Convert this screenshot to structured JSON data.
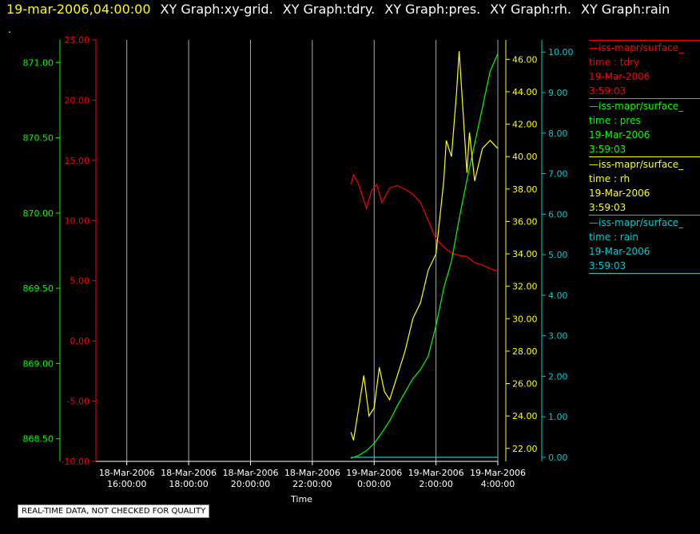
{
  "header": {
    "timestamp": "19-mar-2006,04:00:00",
    "titles": [
      "XY Graph:xy-grid.",
      "XY Graph:tdry.",
      "XY Graph:pres.",
      "XY Graph:rh.",
      "XY Graph:rain"
    ]
  },
  "header_mark": ".",
  "footer": "REAL-TIME DATA, NOT CHECKED FOR QUALITY",
  "colors": {
    "tdry": "#ff0000",
    "pres": "#00ff00",
    "rh": "#ffff00",
    "rain": "#00cccc",
    "grid": "#aaaaaa"
  },
  "legend": [
    {
      "name": "iss-mapr/surface_",
      "field": "time : tdry",
      "date": "19-Mar-2006",
      "time": "3:59:03",
      "color": "#ff0000"
    },
    {
      "name": "iss-mapr/surface_",
      "field": "time : pres",
      "date": "19-Mar-2006",
      "time": "3:59:03",
      "color": "#00ff00"
    },
    {
      "name": "iss-mapr/surface_",
      "field": "time : rh",
      "date": "19-Mar-2006",
      "time": "3:59:03",
      "color": "#ffff00"
    },
    {
      "name": "iss-mapr/surface_",
      "field": "time : rain",
      "date": "19-Mar-2006",
      "time": "3:59:03",
      "color": "#00cccc"
    }
  ],
  "chart_data": {
    "type": "line",
    "xlabel": "Time",
    "x_ticks": [
      [
        "18-Mar-2006",
        "16:00:00"
      ],
      [
        "18-Mar-2006",
        "18:00:00"
      ],
      [
        "18-Mar-2006",
        "20:00:00"
      ],
      [
        "18-Mar-2006",
        "22:00:00"
      ],
      [
        "19-Mar-2006",
        "0:00:00"
      ],
      [
        "19-Mar-2006",
        "2:00:00"
      ],
      [
        "19-Mar-2006",
        "4:00:00"
      ]
    ],
    "xlim": [
      "2006-03-18 15:00:00",
      "2006-03-19 04:00:00"
    ],
    "grid": true,
    "y_axes": {
      "pres": {
        "ylim": [
          868.35,
          871.15
        ],
        "ticks": [
          "868.50",
          "869.00",
          "869.50",
          "870.00",
          "870.50",
          "871.00"
        ]
      },
      "tdry": {
        "ylim": [
          -10,
          25
        ],
        "ticks": [
          "-10.00",
          "-5.00",
          "0.00",
          "5.00",
          "10.00",
          "15.00",
          "20.00",
          "25.00"
        ]
      },
      "rh": {
        "ylim": [
          21.2,
          47.2
        ],
        "ticks": [
          "22.00",
          "24.00",
          "26.00",
          "28.00",
          "30.00",
          "32.00",
          "34.00",
          "36.00",
          "38.00",
          "40.00",
          "42.00",
          "44.00",
          "46.00"
        ]
      },
      "rain": {
        "ylim": [
          -0.1,
          10.3
        ],
        "ticks": [
          "0.00",
          "1.00",
          "2.00",
          "3.00",
          "4.00",
          "5.00",
          "6.00",
          "7.00",
          "8.00",
          "9.00",
          "10.00"
        ]
      }
    },
    "series": [
      {
        "key": "tdry",
        "name": "time : tdry",
        "x": [
          "2006-03-18 23:15",
          "2006-03-18 23:20",
          "2006-03-18 23:30",
          "2006-03-18 23:45",
          "2006-03-18 23:55",
          "2006-03-19 00:05",
          "2006-03-19 00:15",
          "2006-03-19 00:30",
          "2006-03-19 00:45",
          "2006-03-19 01:00",
          "2006-03-19 01:15",
          "2006-03-19 01:30",
          "2006-03-19 01:45",
          "2006-03-19 02:00",
          "2006-03-19 02:15",
          "2006-03-19 02:30",
          "2006-03-19 02:45",
          "2006-03-19 03:00",
          "2006-03-19 03:15",
          "2006-03-19 03:30",
          "2006-03-19 03:45",
          "2006-03-19 04:00"
        ],
        "values": [
          13.0,
          13.8,
          13.0,
          11.0,
          12.5,
          13.0,
          11.5,
          12.7,
          12.9,
          12.6,
          12.2,
          11.5,
          10.0,
          8.5,
          7.8,
          7.3,
          7.1,
          7.0,
          6.5,
          6.3,
          6.0,
          5.8
        ]
      },
      {
        "key": "pres",
        "name": "time : pres",
        "x": [
          "2006-03-18 23:15",
          "2006-03-18 23:30",
          "2006-03-18 23:45",
          "2006-03-19 00:00",
          "2006-03-19 00:15",
          "2006-03-19 00:30",
          "2006-03-19 00:45",
          "2006-03-19 01:00",
          "2006-03-19 01:15",
          "2006-03-19 01:30",
          "2006-03-19 01:45",
          "2006-03-19 02:00",
          "2006-03-19 02:15",
          "2006-03-19 02:30",
          "2006-03-19 02:45",
          "2006-03-19 03:00",
          "2006-03-19 03:15",
          "2006-03-19 03:30",
          "2006-03-19 03:45",
          "2006-03-19 04:00"
        ],
        "values": [
          868.37,
          868.39,
          868.42,
          868.47,
          868.54,
          868.62,
          868.72,
          868.81,
          868.9,
          868.96,
          869.05,
          869.25,
          869.5,
          869.68,
          869.96,
          870.22,
          870.46,
          870.7,
          870.94,
          871.06
        ]
      },
      {
        "key": "rh",
        "name": "time : rh",
        "x": [
          "2006-03-18 23:15",
          "2006-03-18 23:20",
          "2006-03-18 23:30",
          "2006-03-18 23:40",
          "2006-03-18 23:50",
          "2006-03-19 00:00",
          "2006-03-19 00:10",
          "2006-03-19 00:20",
          "2006-03-19 00:30",
          "2006-03-19 00:45",
          "2006-03-19 01:00",
          "2006-03-19 01:15",
          "2006-03-19 01:30",
          "2006-03-19 01:45",
          "2006-03-19 02:00",
          "2006-03-19 02:10",
          "2006-03-19 02:15",
          "2006-03-19 02:20",
          "2006-03-19 02:30",
          "2006-03-19 02:40",
          "2006-03-19 02:45",
          "2006-03-19 02:50",
          "2006-03-19 03:00",
          "2006-03-19 03:05",
          "2006-03-19 03:15",
          "2006-03-19 03:30",
          "2006-03-19 03:45",
          "2006-03-19 04:00"
        ],
        "values": [
          23.0,
          22.5,
          24.5,
          26.5,
          24.0,
          24.5,
          27.0,
          25.5,
          25.0,
          26.5,
          28.0,
          30.0,
          31.0,
          33.0,
          34.0,
          37.0,
          38.5,
          41.0,
          40.0,
          44.0,
          46.5,
          44.0,
          39.0,
          41.5,
          38.5,
          40.5,
          41.0,
          40.5
        ]
      },
      {
        "key": "rain",
        "name": "time : rain",
        "x": [
          "2006-03-18 23:15",
          "2006-03-19 04:00"
        ],
        "values": [
          0.0,
          0.0
        ]
      }
    ]
  }
}
